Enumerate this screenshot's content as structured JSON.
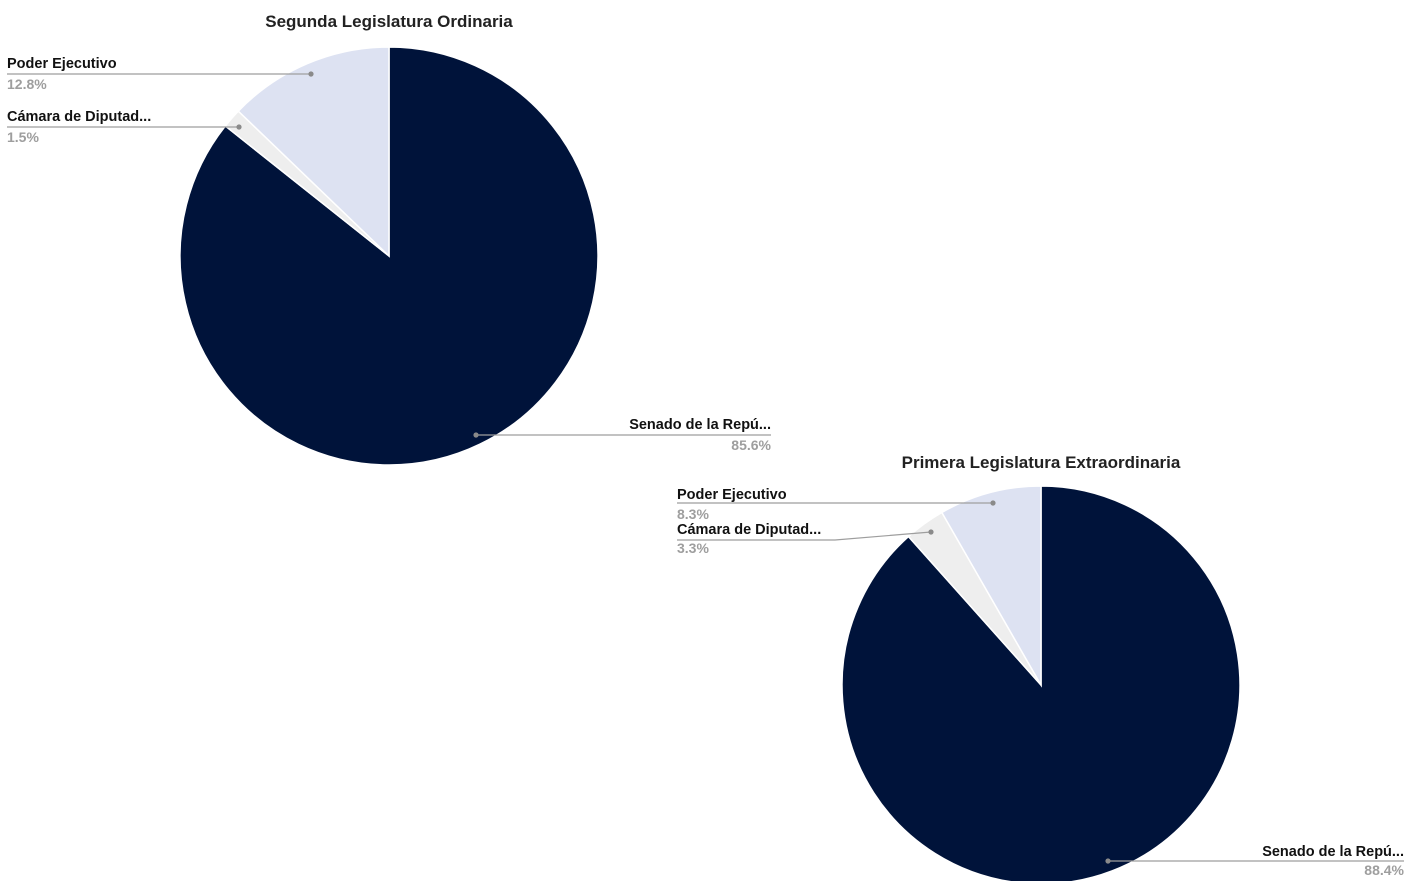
{
  "chart_data": [
    {
      "type": "pie",
      "title": "Segunda Legislatura Ordinaria",
      "slices": [
        {
          "label": "Senado de la Repú...",
          "value": 85.6,
          "pct_label": "85.6%",
          "color": "#00133a"
        },
        {
          "label": "Cámara de Diputad...",
          "value": 1.5,
          "pct_label": "1.5%",
          "color": "#eeeeee"
        },
        {
          "label": "Poder Ejecutivo",
          "value": 12.8,
          "pct_label": "12.8%",
          "color": "#dde2f2"
        }
      ]
    },
    {
      "type": "pie",
      "title": "Primera Legislatura Extraordinaria",
      "slices": [
        {
          "label": "Senado de la Repú...",
          "value": 88.4,
          "pct_label": "88.4%",
          "color": "#00133a"
        },
        {
          "label": "Cámara de Diputad...",
          "value": 3.3,
          "pct_label": "3.3%",
          "color": "#eeeeee"
        },
        {
          "label": "Poder Ejecutivo",
          "value": 8.3,
          "pct_label": "8.3%",
          "color": "#dde2f2"
        }
      ]
    }
  ]
}
